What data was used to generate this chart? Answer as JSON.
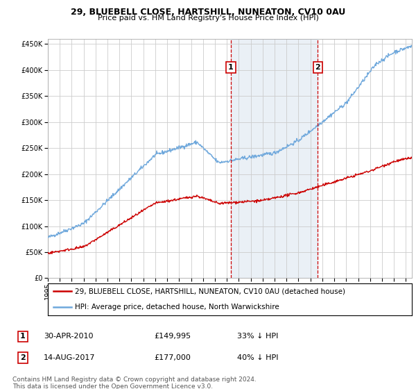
{
  "title1": "29, BLUEBELL CLOSE, HARTSHILL, NUNEATON, CV10 0AU",
  "title2": "Price paid vs. HM Land Registry's House Price Index (HPI)",
  "legend_line1": "29, BLUEBELL CLOSE, HARTSHILL, NUNEATON, CV10 0AU (detached house)",
  "legend_line2": "HPI: Average price, detached house, North Warwickshire",
  "footer": "Contains HM Land Registry data © Crown copyright and database right 2024.\nThis data is licensed under the Open Government Licence v3.0.",
  "sale1_label": "1",
  "sale1_date": "30-APR-2010",
  "sale1_price": "£149,995",
  "sale1_note": "33% ↓ HPI",
  "sale2_label": "2",
  "sale2_date": "14-AUG-2017",
  "sale2_price": "£177,000",
  "sale2_note": "40% ↓ HPI",
  "sale1_x": 2010.33,
  "sale2_x": 2017.62,
  "ylim_min": 0,
  "ylim_max": 460000,
  "xlim_min": 1995,
  "xlim_max": 2025.5,
  "hpi_color": "#6fa8dc",
  "sold_color": "#cc0000",
  "vline_color": "#cc0000",
  "shade_color": "#dce6f1",
  "grid_color": "#cccccc",
  "bg_color": "#ffffff",
  "plot_bg": "#ffffff",
  "title_fontsize": 9,
  "subtitle_fontsize": 8,
  "tick_fontsize": 7,
  "legend_fontsize": 7.5,
  "footer_fontsize": 6.5,
  "annot_fontsize": 8
}
